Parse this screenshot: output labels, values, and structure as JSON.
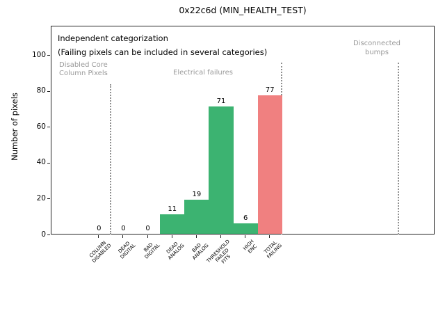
{
  "window": {
    "title": "0x22c6d (MIN_HEALTH_TEST)"
  },
  "chart_data": {
    "type": "bar",
    "title": "0x22c6d (MIN_HEALTH_TEST)",
    "xlabel": "",
    "ylabel": "Number of pixels",
    "yticks": [
      0,
      20,
      40,
      60,
      80,
      100
    ],
    "ylim": [
      0,
      116
    ],
    "grid": false,
    "legend": false,
    "categories": [
      "COLUMN DISABLED",
      "DEAD DIGITAL",
      "BAD DIGITAL",
      "DEAD ANALOG",
      "BAD ANALOG",
      "THRESHOLD FAILED FITS",
      "HIGH ENC",
      "TOTAL FAILING"
    ],
    "categories_display": [
      "COLUMN\nDISABLED",
      "DEAD\nDIGITAL",
      "BAD\nDIGITAL",
      "DEAD\nANALOG",
      "BAD\nANALOG",
      "THRESHOLD\nFAILED\nFITS",
      "HIGH\nENC",
      "TOTAL\nFAILING"
    ],
    "values": [
      0,
      0,
      0,
      11,
      19,
      71,
      6,
      77
    ],
    "bar_colors": [
      "#3cb371",
      "#3cb371",
      "#3cb371",
      "#3cb371",
      "#3cb371",
      "#3cb371",
      "#3cb371",
      "#f08080"
    ],
    "annotations": {
      "independent": "Independent categorization",
      "failing_note": "(Failing pixels can be included in several categories)",
      "section_disabled": "Disabled Core\nColumn Pixels",
      "section_electrical": "Electrical failures",
      "section_bumps": "Disconnected\nbumps"
    },
    "colors": {
      "pass_bar": "#3cb371",
      "fail_bar": "#f08080",
      "section_divider": "#8f8f8f",
      "section_label": "#999999",
      "axis": "#222222"
    }
  }
}
